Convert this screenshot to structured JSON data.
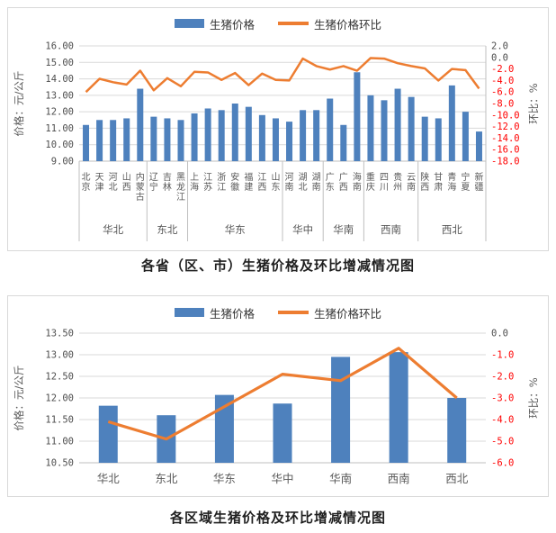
{
  "colors": {
    "bar": "#4e81bd",
    "line": "#ed7d31",
    "tick": "#4d4d4d",
    "negative_tick": "#ff0000",
    "grid": "#d9d9d9",
    "axis": "#bfbfbf",
    "category_text": "#595959",
    "caption_text": "#1f1f1f"
  },
  "chart_data": [
    {
      "type": "bar+line",
      "title": "各省（区、市）生猪价格及环比增减情况图",
      "legend_position": "top",
      "grid": true,
      "categories": [
        "北京",
        "天津",
        "河北",
        "山西",
        "内蒙古",
        "辽宁",
        "吉林",
        "黑龙江",
        "上海",
        "江苏",
        "浙江",
        "安徽",
        "福建",
        "江西",
        "山东",
        "河南",
        "湖北",
        "湖南",
        "广东",
        "广西",
        "海南",
        "重庆",
        "四川",
        "贵州",
        "云南",
        "陕西",
        "甘肃",
        "青海",
        "宁夏",
        "新疆"
      ],
      "category_groups": [
        {
          "label": "华北",
          "count": 5
        },
        {
          "label": "东北",
          "count": 3
        },
        {
          "label": "华东",
          "count": 7
        },
        {
          "label": "华中",
          "count": 3
        },
        {
          "label": "华南",
          "count": 3
        },
        {
          "label": "西南",
          "count": 4
        },
        {
          "label": "西北",
          "count": 5
        }
      ],
      "series": [
        {
          "name": "生猪价格",
          "type": "bar",
          "axis": "left",
          "values": [
            11.2,
            11.5,
            11.5,
            11.6,
            13.4,
            11.7,
            11.6,
            11.5,
            11.9,
            12.2,
            12.1,
            12.5,
            12.3,
            11.8,
            11.6,
            11.4,
            12.1,
            12.1,
            12.8,
            11.2,
            14.4,
            13.0,
            12.7,
            13.4,
            12.9,
            11.7,
            11.6,
            13.6,
            12.0,
            10.8
          ]
        },
        {
          "name": "生猪价格环比",
          "type": "line",
          "axis": "right",
          "values": [
            -6.0,
            -3.7,
            -4.3,
            -4.7,
            -2.3,
            -5.7,
            -3.6,
            -5.0,
            -2.5,
            -2.6,
            -3.9,
            -2.7,
            -4.8,
            -2.8,
            -3.9,
            -4.0,
            -0.2,
            -1.5,
            -2.1,
            -1.5,
            -2.3,
            -0.1,
            -0.2,
            -1.0,
            -1.5,
            -1.9,
            -4.0,
            -2.0,
            -2.2,
            -5.4
          ]
        }
      ],
      "y_left": {
        "label": "价格：元/公斤",
        "min": 9,
        "max": 16,
        "step": 1,
        "decimals": 2
      },
      "y_right": {
        "label": "环比：%",
        "min": -18,
        "max": 2,
        "step": 2,
        "decimals": 1
      }
    },
    {
      "type": "bar+line",
      "title": "各区域生猪价格及环比增减情况图",
      "legend_position": "top",
      "grid": true,
      "categories": [
        "华北",
        "东北",
        "华东",
        "华中",
        "华南",
        "西南",
        "西北"
      ],
      "category_groups": [],
      "series": [
        {
          "name": "生猪价格",
          "type": "bar",
          "axis": "left",
          "values": [
            11.82,
            11.6,
            12.07,
            11.87,
            12.95,
            13.06,
            12.0
          ]
        },
        {
          "name": "生猪价格环比",
          "type": "line",
          "axis": "right",
          "values": [
            -4.1,
            -4.9,
            -3.4,
            -1.9,
            -2.2,
            -0.7,
            -3.0
          ]
        }
      ],
      "y_left": {
        "label": "价格：元/公斤",
        "min": 10.5,
        "max": 13.5,
        "step": 0.5,
        "decimals": 2
      },
      "y_right": {
        "label": "环比：%",
        "min": -6,
        "max": 0,
        "step": 1,
        "decimals": 1
      }
    }
  ]
}
